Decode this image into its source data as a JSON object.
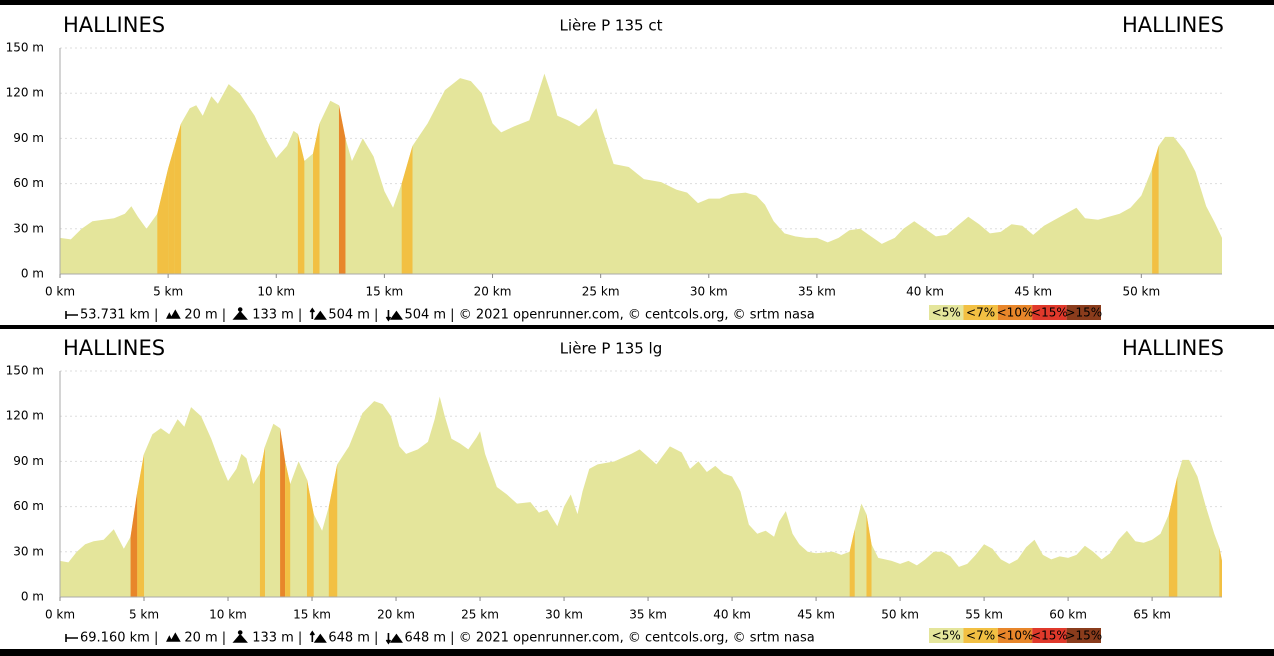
{
  "chart_data": [
    {
      "type": "area",
      "title": "Lière P 135 ct",
      "start_label": "HALLINES",
      "end_label": "HALLINES",
      "stats": [
        "53.731 km |",
        "20 m |",
        "133 m |",
        "504 m |",
        "504 m | © 2021 openrunner.com, © centcols.org, © srtm nasa"
      ],
      "x": [
        0,
        0.5,
        1,
        1.5,
        2,
        2.5,
        3,
        3.3,
        3.6,
        4,
        4.5,
        5,
        5.3,
        5.6,
        6,
        6.3,
        6.6,
        7,
        7.3,
        7.8,
        8.3,
        9,
        9.5,
        10,
        10.5,
        10.8,
        11,
        11.3,
        11.7,
        12,
        12.5,
        12.9,
        13.2,
        13.5,
        14,
        14.5,
        15,
        15.4,
        15.8,
        16.3,
        17,
        17.8,
        18.5,
        19,
        19.5,
        20,
        20.4,
        21,
        21.7,
        22,
        22.4,
        22.7,
        23,
        23.5,
        24,
        24.5,
        24.8,
        25.1,
        25.6,
        26.3,
        27,
        27.8,
        28.5,
        29,
        29.5,
        30,
        30.5,
        31,
        31.7,
        32.2,
        32.6,
        33,
        33.5,
        34,
        34.5,
        35,
        35.5,
        36,
        36.5,
        37,
        37.5,
        38,
        38.6,
        39,
        39.5,
        40,
        40.5,
        41,
        41.5,
        42,
        42.5,
        43,
        43.5,
        44,
        44.5,
        45,
        45.5,
        46,
        46.5,
        47,
        47.4,
        48,
        48.5,
        49,
        49.5,
        50,
        50.5,
        50.8,
        51.1,
        51.5,
        52,
        52.5,
        53,
        53.4,
        53.731
      ],
      "values": [
        24,
        23,
        30,
        35,
        36,
        37,
        40,
        45,
        38,
        30,
        40,
        70,
        85,
        100,
        110,
        112,
        105,
        118,
        113,
        126,
        120,
        105,
        90,
        77,
        85,
        95,
        93,
        75,
        80,
        100,
        115,
        112,
        90,
        75,
        90,
        78,
        55,
        44,
        60,
        85,
        100,
        122,
        130,
        128,
        120,
        100,
        94,
        98,
        102,
        115,
        133,
        120,
        105,
        102,
        98,
        104,
        110,
        95,
        73,
        71,
        63,
        61,
        56,
        54,
        47,
        50,
        50,
        53,
        54,
        52,
        46,
        35,
        27,
        25,
        24,
        24,
        21,
        24,
        29,
        30,
        25,
        20,
        24,
        30,
        35,
        30,
        25,
        26,
        32,
        38,
        33,
        27,
        28,
        33,
        32,
        26,
        32,
        36,
        40,
        44,
        37,
        36,
        38,
        40,
        44,
        52,
        70,
        85,
        91,
        91,
        82,
        68,
        45,
        34,
        24
      ],
      "color": "#e4e59b",
      "xlim": [
        0,
        53.731
      ],
      "xticks": [
        {
          "value": 0,
          "label": "0 km"
        },
        {
          "value": 5,
          "label": "5 km"
        },
        {
          "value": 10,
          "label": "10 km"
        },
        {
          "value": 15,
          "label": "15 km"
        },
        {
          "value": 20,
          "label": "20 km"
        },
        {
          "value": 25,
          "label": "25 km"
        },
        {
          "value": 30,
          "label": "30 km"
        },
        {
          "value": 35,
          "label": "35 km"
        },
        {
          "value": 40,
          "label": "40 km"
        },
        {
          "value": 45,
          "label": "45 km"
        },
        {
          "value": 50,
          "label": "50 km"
        }
      ],
      "ylim": [
        0,
        150
      ],
      "yticks": [
        {
          "value": 0,
          "label": "0 m"
        },
        {
          "value": 30,
          "label": "30 m"
        },
        {
          "value": 60,
          "label": "60 m"
        },
        {
          "value": 90,
          "label": "90 m"
        },
        {
          "value": 120,
          "label": "120 m"
        },
        {
          "value": 150,
          "label": "150 m"
        }
      ],
      "grid": true,
      "legend": [
        {
          "value": 5,
          "label": "<5%",
          "color": "#e4e59b"
        },
        {
          "value": 7,
          "label": "<7%",
          "color": "#f2c043"
        },
        {
          "value": 10,
          "label": "<10%",
          "color": "#e8862a"
        },
        {
          "value": 15,
          "label": "<15%",
          "color": "#e0392b"
        },
        {
          "value": 15,
          "label": ">15%",
          "color": "#8a3c1c"
        }
      ]
    },
    {
      "type": "area",
      "title": "Lière P 135 lg",
      "start_label": "HALLINES",
      "end_label": "HALLINES",
      "stats": [
        "69.160 km |",
        "20 m |",
        "133 m |",
        "648 m |",
        "648 m | © 2021 openrunner.com, © centcols.org, © srtm nasa"
      ],
      "x": [
        0,
        0.5,
        1,
        1.5,
        2,
        2.6,
        3.2,
        3.8,
        4.2,
        4.6,
        5,
        5.5,
        6,
        6.5,
        7,
        7.4,
        7.8,
        8.4,
        9,
        9.5,
        10,
        10.5,
        10.8,
        11.1,
        11.5,
        11.9,
        12.2,
        12.7,
        13.1,
        13.4,
        13.7,
        14.2,
        14.7,
        15.1,
        15.6,
        16,
        16.5,
        17.2,
        18,
        18.7,
        19.2,
        19.7,
        20.2,
        20.6,
        21.3,
        21.9,
        22.3,
        22.6,
        22.9,
        23.3,
        23.8,
        24.3,
        24.8,
        25,
        25.3,
        26,
        26.6,
        27.2,
        28,
        28.5,
        29,
        29.6,
        30,
        30.4,
        30.8,
        31.1,
        31.5,
        32,
        33,
        34,
        34.5,
        35,
        35.5,
        36.3,
        37,
        37.5,
        38,
        38.5,
        39,
        39.5,
        40,
        40.5,
        41,
        41.5,
        42,
        42.5,
        42.8,
        43.2,
        43.6,
        44,
        44.5,
        45,
        46,
        46.5,
        47,
        47.3,
        47.7,
        48,
        48.3,
        48.7,
        49.5,
        50,
        50.5,
        51,
        51.5,
        52,
        52.5,
        53,
        53.5,
        54,
        54.5,
        55,
        55.5,
        56,
        56.5,
        57,
        57.5,
        58,
        58.5,
        59,
        59.5,
        60,
        60.5,
        61,
        61.5,
        62,
        62.5,
        63,
        63.5,
        64,
        64.5,
        65,
        65.5,
        66,
        66.5,
        66.8,
        67.2,
        67.7,
        68.2,
        68.7,
        69,
        69.16
      ],
      "values": [
        24,
        23,
        30,
        35,
        37,
        38,
        45,
        32,
        40,
        70,
        95,
        108,
        112,
        108,
        118,
        113,
        126,
        120,
        105,
        90,
        77,
        85,
        95,
        92,
        75,
        82,
        100,
        115,
        112,
        90,
        75,
        90,
        78,
        55,
        44,
        60,
        88,
        100,
        122,
        130,
        128,
        120,
        100,
        95,
        98,
        103,
        118,
        133,
        120,
        105,
        102,
        98,
        106,
        110,
        95,
        73,
        68,
        62,
        63,
        56,
        58,
        47,
        60,
        68,
        55,
        70,
        85,
        88,
        90,
        95,
        98,
        93,
        88,
        100,
        96,
        85,
        90,
        83,
        87,
        82,
        80,
        70,
        48,
        42,
        44,
        40,
        50,
        57,
        42,
        35,
        30,
        29,
        30,
        28,
        30,
        45,
        62,
        55,
        35,
        26,
        24,
        22,
        24,
        21,
        25,
        30,
        30,
        27,
        20,
        22,
        28,
        35,
        32,
        25,
        22,
        25,
        33,
        38,
        28,
        25,
        27,
        26,
        28,
        34,
        30,
        25,
        29,
        38,
        44,
        37,
        36,
        38,
        42,
        55,
        80,
        91,
        91,
        80,
        60,
        42,
        33,
        24
      ],
      "color": "#e4e59b",
      "xlim": [
        0,
        69.16
      ],
      "xticks": [
        {
          "value": 0,
          "label": "0 km"
        },
        {
          "value": 5,
          "label": "5 km"
        },
        {
          "value": 10,
          "label": "10 km"
        },
        {
          "value": 15,
          "label": "15 km"
        },
        {
          "value": 20,
          "label": "20 km"
        },
        {
          "value": 25,
          "label": "25 km"
        },
        {
          "value": 30,
          "label": "30 km"
        },
        {
          "value": 35,
          "label": "35 km"
        },
        {
          "value": 40,
          "label": "40 km"
        },
        {
          "value": 45,
          "label": "45 km"
        },
        {
          "value": 50,
          "label": "50 km"
        },
        {
          "value": 55,
          "label": "55 km"
        },
        {
          "value": 60,
          "label": "60 km"
        },
        {
          "value": 65,
          "label": "65 km"
        }
      ],
      "ylim": [
        0,
        150
      ],
      "yticks": [
        {
          "value": 0,
          "label": "0 m"
        },
        {
          "value": 30,
          "label": "30 m"
        },
        {
          "value": 60,
          "label": "60 m"
        },
        {
          "value": 90,
          "label": "90 m"
        },
        {
          "value": 120,
          "label": "120 m"
        },
        {
          "value": 150,
          "label": "150 m"
        }
      ],
      "grid": true,
      "legend": [
        {
          "value": 5,
          "label": "<5%",
          "color": "#e4e59b"
        },
        {
          "value": 7,
          "label": "<7%",
          "color": "#f2c043"
        },
        {
          "value": 10,
          "label": "<10%",
          "color": "#e8862a"
        },
        {
          "value": 15,
          "label": "<15%",
          "color": "#e0392b"
        },
        {
          "value": 15,
          "label": ">15%",
          "color": "#8a3c1c"
        }
      ]
    }
  ]
}
